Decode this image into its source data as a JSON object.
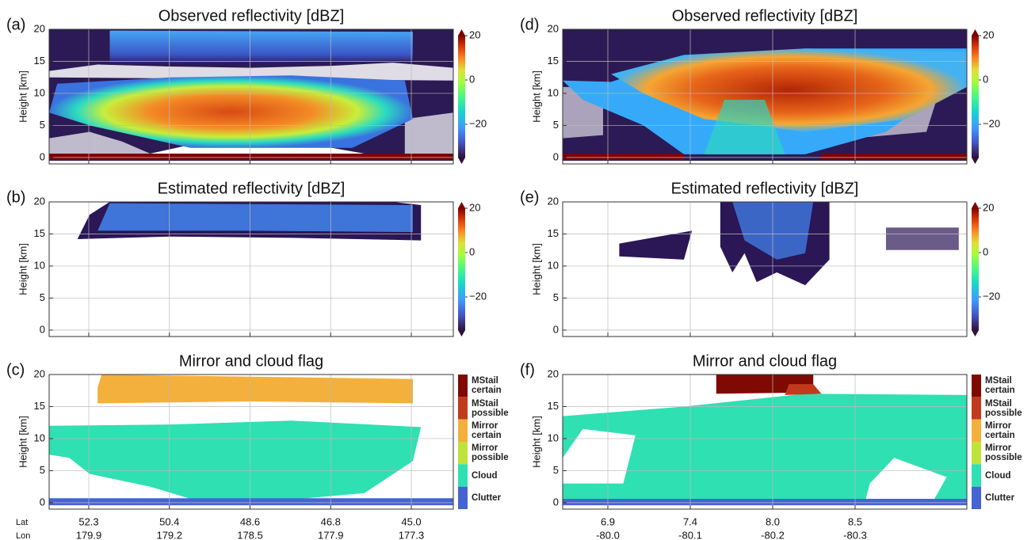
{
  "chart_data": [
    {
      "type": "heatmap",
      "panel_label": "(a)",
      "title": "Observed reflectivity [dBZ]",
      "y_label": "Height [km]",
      "ylim": [
        -1,
        20
      ],
      "yticks": [
        0,
        5,
        10,
        15,
        20
      ],
      "colorbar": {
        "lim": [
          -35,
          20
        ],
        "ticks": [
          20,
          0,
          {
            "value": -20,
            "label": "−20"
          }
        ]
      }
    },
    {
      "type": "heatmap",
      "panel_label": "(b)",
      "title": "Estimated reflectivity [dBZ]",
      "y_label": "Height [km]",
      "ylim": [
        -1,
        20
      ],
      "yticks": [
        0,
        5,
        10,
        15,
        20
      ],
      "colorbar": {
        "lim": [
          -35,
          20
        ],
        "ticks": [
          20,
          0,
          {
            "value": -20,
            "label": "−20"
          }
        ]
      }
    },
    {
      "type": "flag",
      "panel_label": "(c)",
      "title": "Mirror and cloud flag",
      "y_label": "Height [km]",
      "ylim": [
        -1,
        20
      ],
      "yticks": [
        0,
        5,
        10,
        15,
        20
      ],
      "categories": [
        {
          "name": "MStail certain",
          "color": "#7f0a04"
        },
        {
          "name": "MStail possible",
          "color": "#c23a1c"
        },
        {
          "name": "Mirror certain",
          "color": "#f4b03c"
        },
        {
          "name": "Mirror possible",
          "color": "#bfe33a"
        },
        {
          "name": "Cloud",
          "color": "#2fe0b2"
        },
        {
          "name": "Clutter",
          "color": "#4464d4"
        }
      ],
      "x_row_labels": [
        "Lat",
        "Lon"
      ],
      "lat": [
        "52.3",
        "50.4",
        "48.6",
        "46.8",
        "45.0"
      ],
      "lon": [
        "179.9",
        "179.2",
        "178.5",
        "177.9",
        "177.3"
      ]
    },
    {
      "type": "heatmap",
      "panel_label": "(d)",
      "title": "Observed reflectivity [dBZ]",
      "y_label": "Height [km]",
      "ylim": [
        -1,
        20
      ],
      "yticks": [
        0,
        5,
        10,
        15,
        20
      ],
      "colorbar": {
        "lim": [
          -35,
          20
        ],
        "ticks": [
          20,
          0,
          {
            "value": -20,
            "label": "−20"
          }
        ]
      }
    },
    {
      "type": "heatmap",
      "panel_label": "(e)",
      "title": "Estimated reflectivity [dBZ]",
      "y_label": "Height [km]",
      "ylim": [
        -1,
        20
      ],
      "yticks": [
        0,
        5,
        10,
        15,
        20
      ],
      "colorbar": {
        "lim": [
          -35,
          20
        ],
        "ticks": [
          20,
          0,
          {
            "value": -20,
            "label": "−20"
          }
        ]
      }
    },
    {
      "type": "flag",
      "panel_label": "(f)",
      "title": "Mirror and cloud flag",
      "y_label": "Height [km]",
      "ylim": [
        -1,
        20
      ],
      "yticks": [
        0,
        5,
        10,
        15,
        20
      ],
      "categories": [
        {
          "name": "MStail certain",
          "color": "#7f0a04"
        },
        {
          "name": "MStail possible",
          "color": "#c23a1c"
        },
        {
          "name": "Mirror certain",
          "color": "#f4b03c"
        },
        {
          "name": "Mirror possible",
          "color": "#bfe33a"
        },
        {
          "name": "Cloud",
          "color": "#2fe0b2"
        },
        {
          "name": "Clutter",
          "color": "#4464d4"
        }
      ],
      "lat": [
        "6.9",
        "7.4",
        "8.0",
        "8.5"
      ],
      "lon": [
        "-80.0",
        "-80.1",
        "-80.2",
        "-80.3"
      ]
    }
  ]
}
